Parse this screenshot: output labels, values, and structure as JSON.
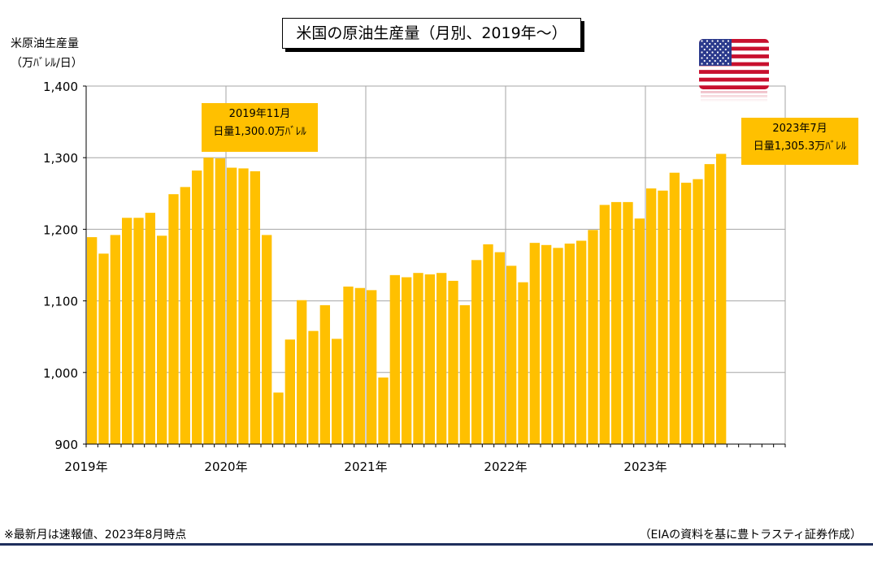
{
  "title": "米国の原油生産量（月別、2019年～）",
  "ylabel": {
    "line1": "米原油生産量",
    "line2": "（万ﾊﾞﾚﾙ/日）"
  },
  "annotations": [
    {
      "line1": "2019年11月",
      "line2": "日量1,300.0万ﾊﾞﾚﾙ"
    },
    {
      "line1": "2023年7月",
      "line2": "日量1,305.3万ﾊﾞﾚﾙ"
    }
  ],
  "footer": {
    "note": "※最新月は速報値、2023年8月時点",
    "source": "（EIAの資料を基に豊トラスティ証券作成）"
  },
  "icons": {
    "flag": "us-flag-icon"
  },
  "colors": {
    "bar": "#ffc000",
    "grid": "#a6a6a6",
    "axis": "#000000",
    "footer_rule": "#1f2f5c"
  },
  "chart_data": {
    "type": "bar",
    "x_tick_labels": [
      "2019年",
      "2020年",
      "2021年",
      "2022年",
      "2023年"
    ],
    "categories": [
      "2019-01",
      "2019-02",
      "2019-03",
      "2019-04",
      "2019-05",
      "2019-06",
      "2019-07",
      "2019-08",
      "2019-09",
      "2019-10",
      "2019-11",
      "2019-12",
      "2020-01",
      "2020-02",
      "2020-03",
      "2020-04",
      "2020-05",
      "2020-06",
      "2020-07",
      "2020-08",
      "2020-09",
      "2020-10",
      "2020-11",
      "2020-12",
      "2021-01",
      "2021-02",
      "2021-03",
      "2021-04",
      "2021-05",
      "2021-06",
      "2021-07",
      "2021-08",
      "2021-09",
      "2021-10",
      "2021-11",
      "2021-12",
      "2022-01",
      "2022-02",
      "2022-03",
      "2022-04",
      "2022-05",
      "2022-06",
      "2022-07",
      "2022-08",
      "2022-09",
      "2022-10",
      "2022-11",
      "2022-12",
      "2023-01",
      "2023-02",
      "2023-03",
      "2023-04",
      "2023-05",
      "2023-06",
      "2023-07",
      "2023-08",
      "2023-09",
      "2023-10",
      "2023-11",
      "2023-12"
    ],
    "values": [
      1189,
      1166,
      1192,
      1216,
      1216,
      1223,
      1191,
      1249,
      1259,
      1282,
      1300.0,
      1299,
      1286,
      1285,
      1281,
      1192,
      972,
      1046,
      1101,
      1058,
      1094,
      1047,
      1120,
      1118,
      1115,
      993,
      1136,
      1133,
      1139,
      1137,
      1139,
      1128,
      1094,
      1157,
      1179,
      1168,
      1149,
      1126,
      1181,
      1178,
      1174,
      1180,
      1184,
      1199,
      1234,
      1238,
      1238,
      1215,
      1257,
      1254,
      1279,
      1265,
      1270,
      1291,
      1305.3,
      null,
      null,
      null,
      null,
      null
    ],
    "ylim": [
      900,
      1400
    ],
    "y_ticks": [
      900,
      1000,
      1100,
      1200,
      1300,
      1400
    ],
    "y_tick_labels": [
      "900",
      "1,000",
      "1,100",
      "1,200",
      "1,300",
      "1,400"
    ],
    "grid": true,
    "legend": "none"
  }
}
